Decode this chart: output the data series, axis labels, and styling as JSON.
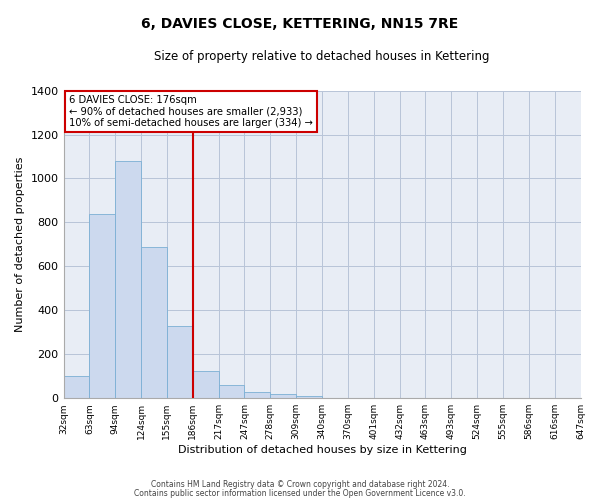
{
  "title": "6, DAVIES CLOSE, KETTERING, NN15 7RE",
  "subtitle": "Size of property relative to detached houses in Kettering",
  "xlabel": "Distribution of detached houses by size in Kettering",
  "ylabel": "Number of detached properties",
  "bin_labels": [
    "32sqm",
    "63sqm",
    "94sqm",
    "124sqm",
    "155sqm",
    "186sqm",
    "217sqm",
    "247sqm",
    "278sqm",
    "309sqm",
    "340sqm",
    "370sqm",
    "401sqm",
    "432sqm",
    "463sqm",
    "493sqm",
    "524sqm",
    "555sqm",
    "586sqm",
    "616sqm",
    "647sqm"
  ],
  "bar_values": [
    100,
    840,
    1080,
    690,
    330,
    125,
    60,
    30,
    20,
    10,
    0,
    0,
    0,
    0,
    0,
    0,
    0,
    0,
    0,
    0
  ],
  "bar_color": "#ccd9ee",
  "bar_edge_color": "#7bafd4",
  "vline_x": 5,
  "vline_color": "#cc0000",
  "ylim": [
    0,
    1400
  ],
  "yticks": [
    0,
    200,
    400,
    600,
    800,
    1000,
    1200,
    1400
  ],
  "annotation_title": "6 DAVIES CLOSE: 176sqm",
  "annotation_line1": "← 90% of detached houses are smaller (2,933)",
  "annotation_line2": "10% of semi-detached houses are larger (334) →",
  "annotation_box_color": "#ffffff",
  "annotation_box_edge": "#cc0000",
  "footer1": "Contains HM Land Registry data © Crown copyright and database right 2024.",
  "footer2": "Contains public sector information licensed under the Open Government Licence v3.0.",
  "background_color": "#ffffff",
  "axes_bg_color": "#e8edf5",
  "grid_color": "#b8c4d8"
}
